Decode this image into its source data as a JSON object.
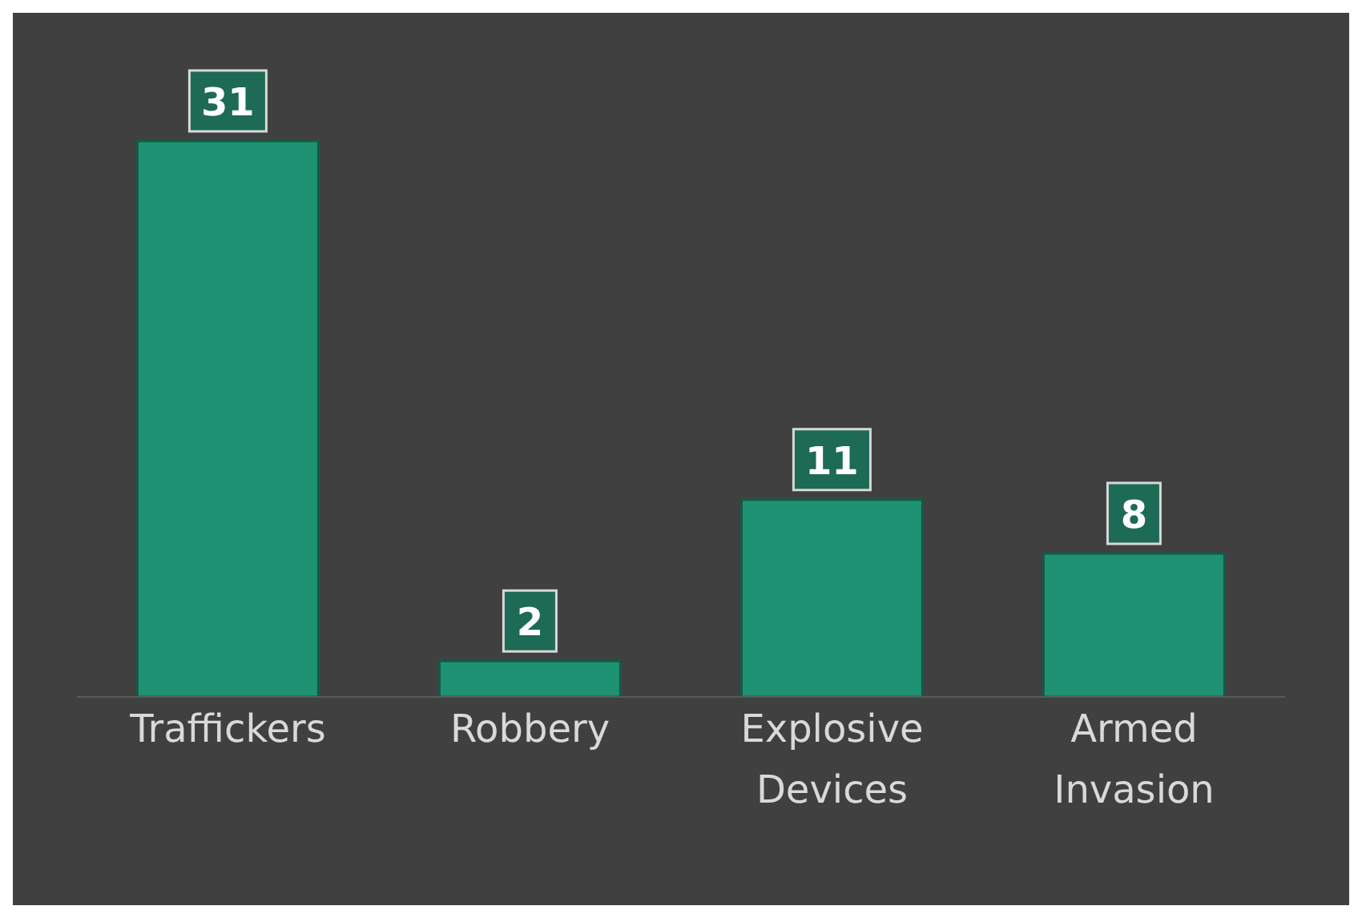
{
  "chart_data": {
    "type": "bar",
    "categories": [
      "Traffickers",
      "Robbery",
      "Explosive Devices",
      "Armed Invasion"
    ],
    "values": [
      31,
      2,
      11,
      8
    ],
    "color": "#1f9273",
    "data_labels": true
  }
}
